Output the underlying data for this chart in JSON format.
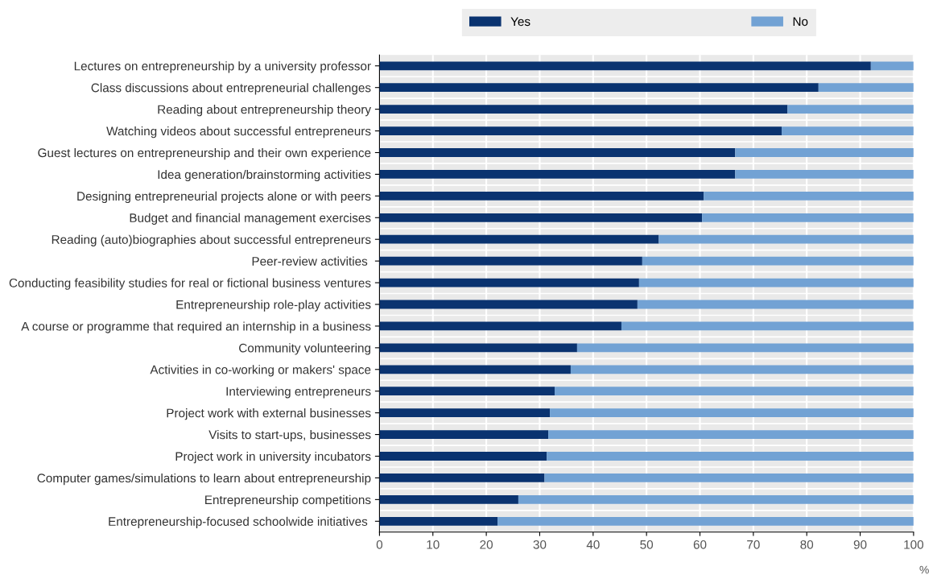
{
  "chart_data": {
    "type": "bar",
    "orientation": "horizontal",
    "stacked": true,
    "xlabel": "%",
    "categories": [
      "Lectures on entrepreneurship by a university professor",
      "Class discussions about entrepreneurial challenges",
      "Reading about entrepreneurship theory",
      "Watching videos about successful entrepreneurs",
      "Guest lectures on entrepreneurship and their own experience",
      "Idea generation/brainstorming activities",
      "Designing entrepreneurial projects alone or with peers",
      "Budget and financial management exercises",
      "Reading (auto)biographies about successful entrepreneurs",
      "Peer-review activities ",
      "Conducting feasibility studies for real or fictional business ventures",
      "Entrepreneurship role-play activities",
      "A course or programme that required an internship in a business",
      "Community volunteering",
      "Activities in co-working or makers' space",
      "Interviewing entrepreneurs",
      "Project work with external businesses",
      "Visits to start-ups, businesses",
      "Project work in university incubators",
      "Computer games/simulations to learn about entrepreneurship",
      "Entrepreneurship competitions",
      "Entrepreneurship-focused schoolwide initiatives "
    ],
    "series": [
      {
        "name": "Yes",
        "color": "#0a3370",
        "values": [
          92.0,
          82.2,
          76.4,
          75.3,
          66.6,
          66.6,
          60.7,
          60.4,
          52.3,
          49.2,
          48.6,
          48.3,
          45.3,
          37.0,
          35.8,
          32.8,
          31.9,
          31.6,
          31.3,
          30.9,
          26.0,
          22.1
        ]
      },
      {
        "name": "No",
        "color": "#72a2d4",
        "values": [
          8.0,
          17.8,
          23.6,
          24.7,
          33.4,
          33.4,
          39.3,
          39.6,
          47.7,
          50.8,
          51.4,
          51.7,
          54.7,
          63.0,
          64.2,
          67.2,
          68.1,
          68.4,
          68.7,
          69.1,
          74.0,
          77.9
        ]
      }
    ],
    "xlim": [
      0,
      100
    ],
    "xticks": [
      0,
      10,
      20,
      30,
      40,
      50,
      60,
      70,
      80,
      90,
      100
    ],
    "grid": "x",
    "legend": "top"
  }
}
